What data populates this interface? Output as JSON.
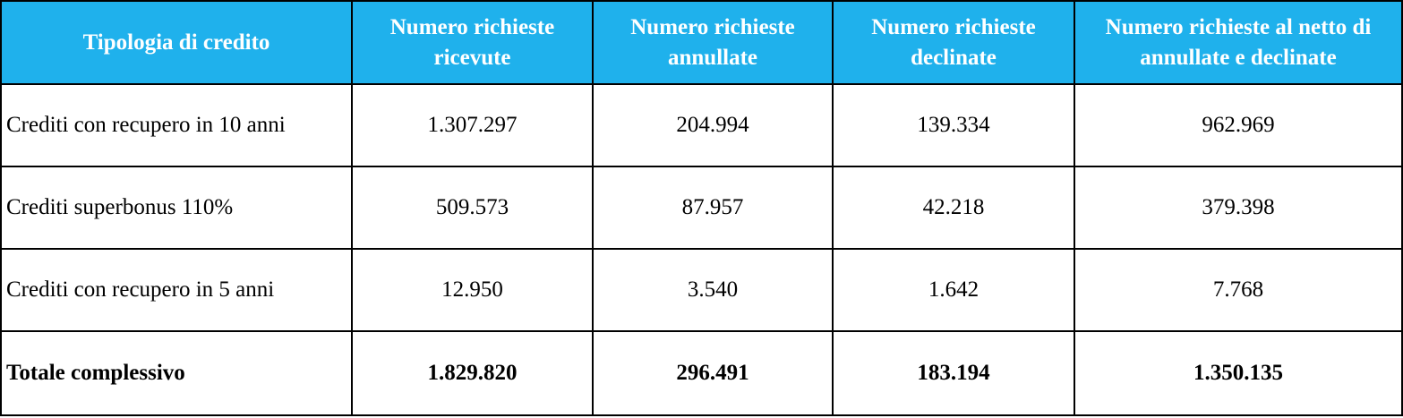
{
  "table": {
    "headers": [
      "Tipologia di credito",
      "Numero richieste ricevute",
      "Numero richieste annullate",
      "Numero richieste declinate",
      "Numero richieste al netto di annullate e declinate"
    ],
    "rows": [
      {
        "label": "Crediti con recupero in 10 anni",
        "values": [
          "1.307.297",
          "204.994",
          "139.334",
          "962.969"
        ]
      },
      {
        "label": "Crediti superbonus 110%",
        "values": [
          "509.573",
          "87.957",
          "42.218",
          "379.398"
        ]
      },
      {
        "label": "Crediti con recupero in 5 anni",
        "values": [
          "12.950",
          "3.540",
          "1.642",
          "7.768"
        ]
      }
    ],
    "total": {
      "label": "Totale complessivo",
      "values": [
        "1.829.820",
        "296.491",
        "183.194",
        "1.350.135"
      ]
    }
  },
  "colors": {
    "header_background": "#1fb1ec",
    "header_text": "#ffffff",
    "border": "#000000"
  }
}
